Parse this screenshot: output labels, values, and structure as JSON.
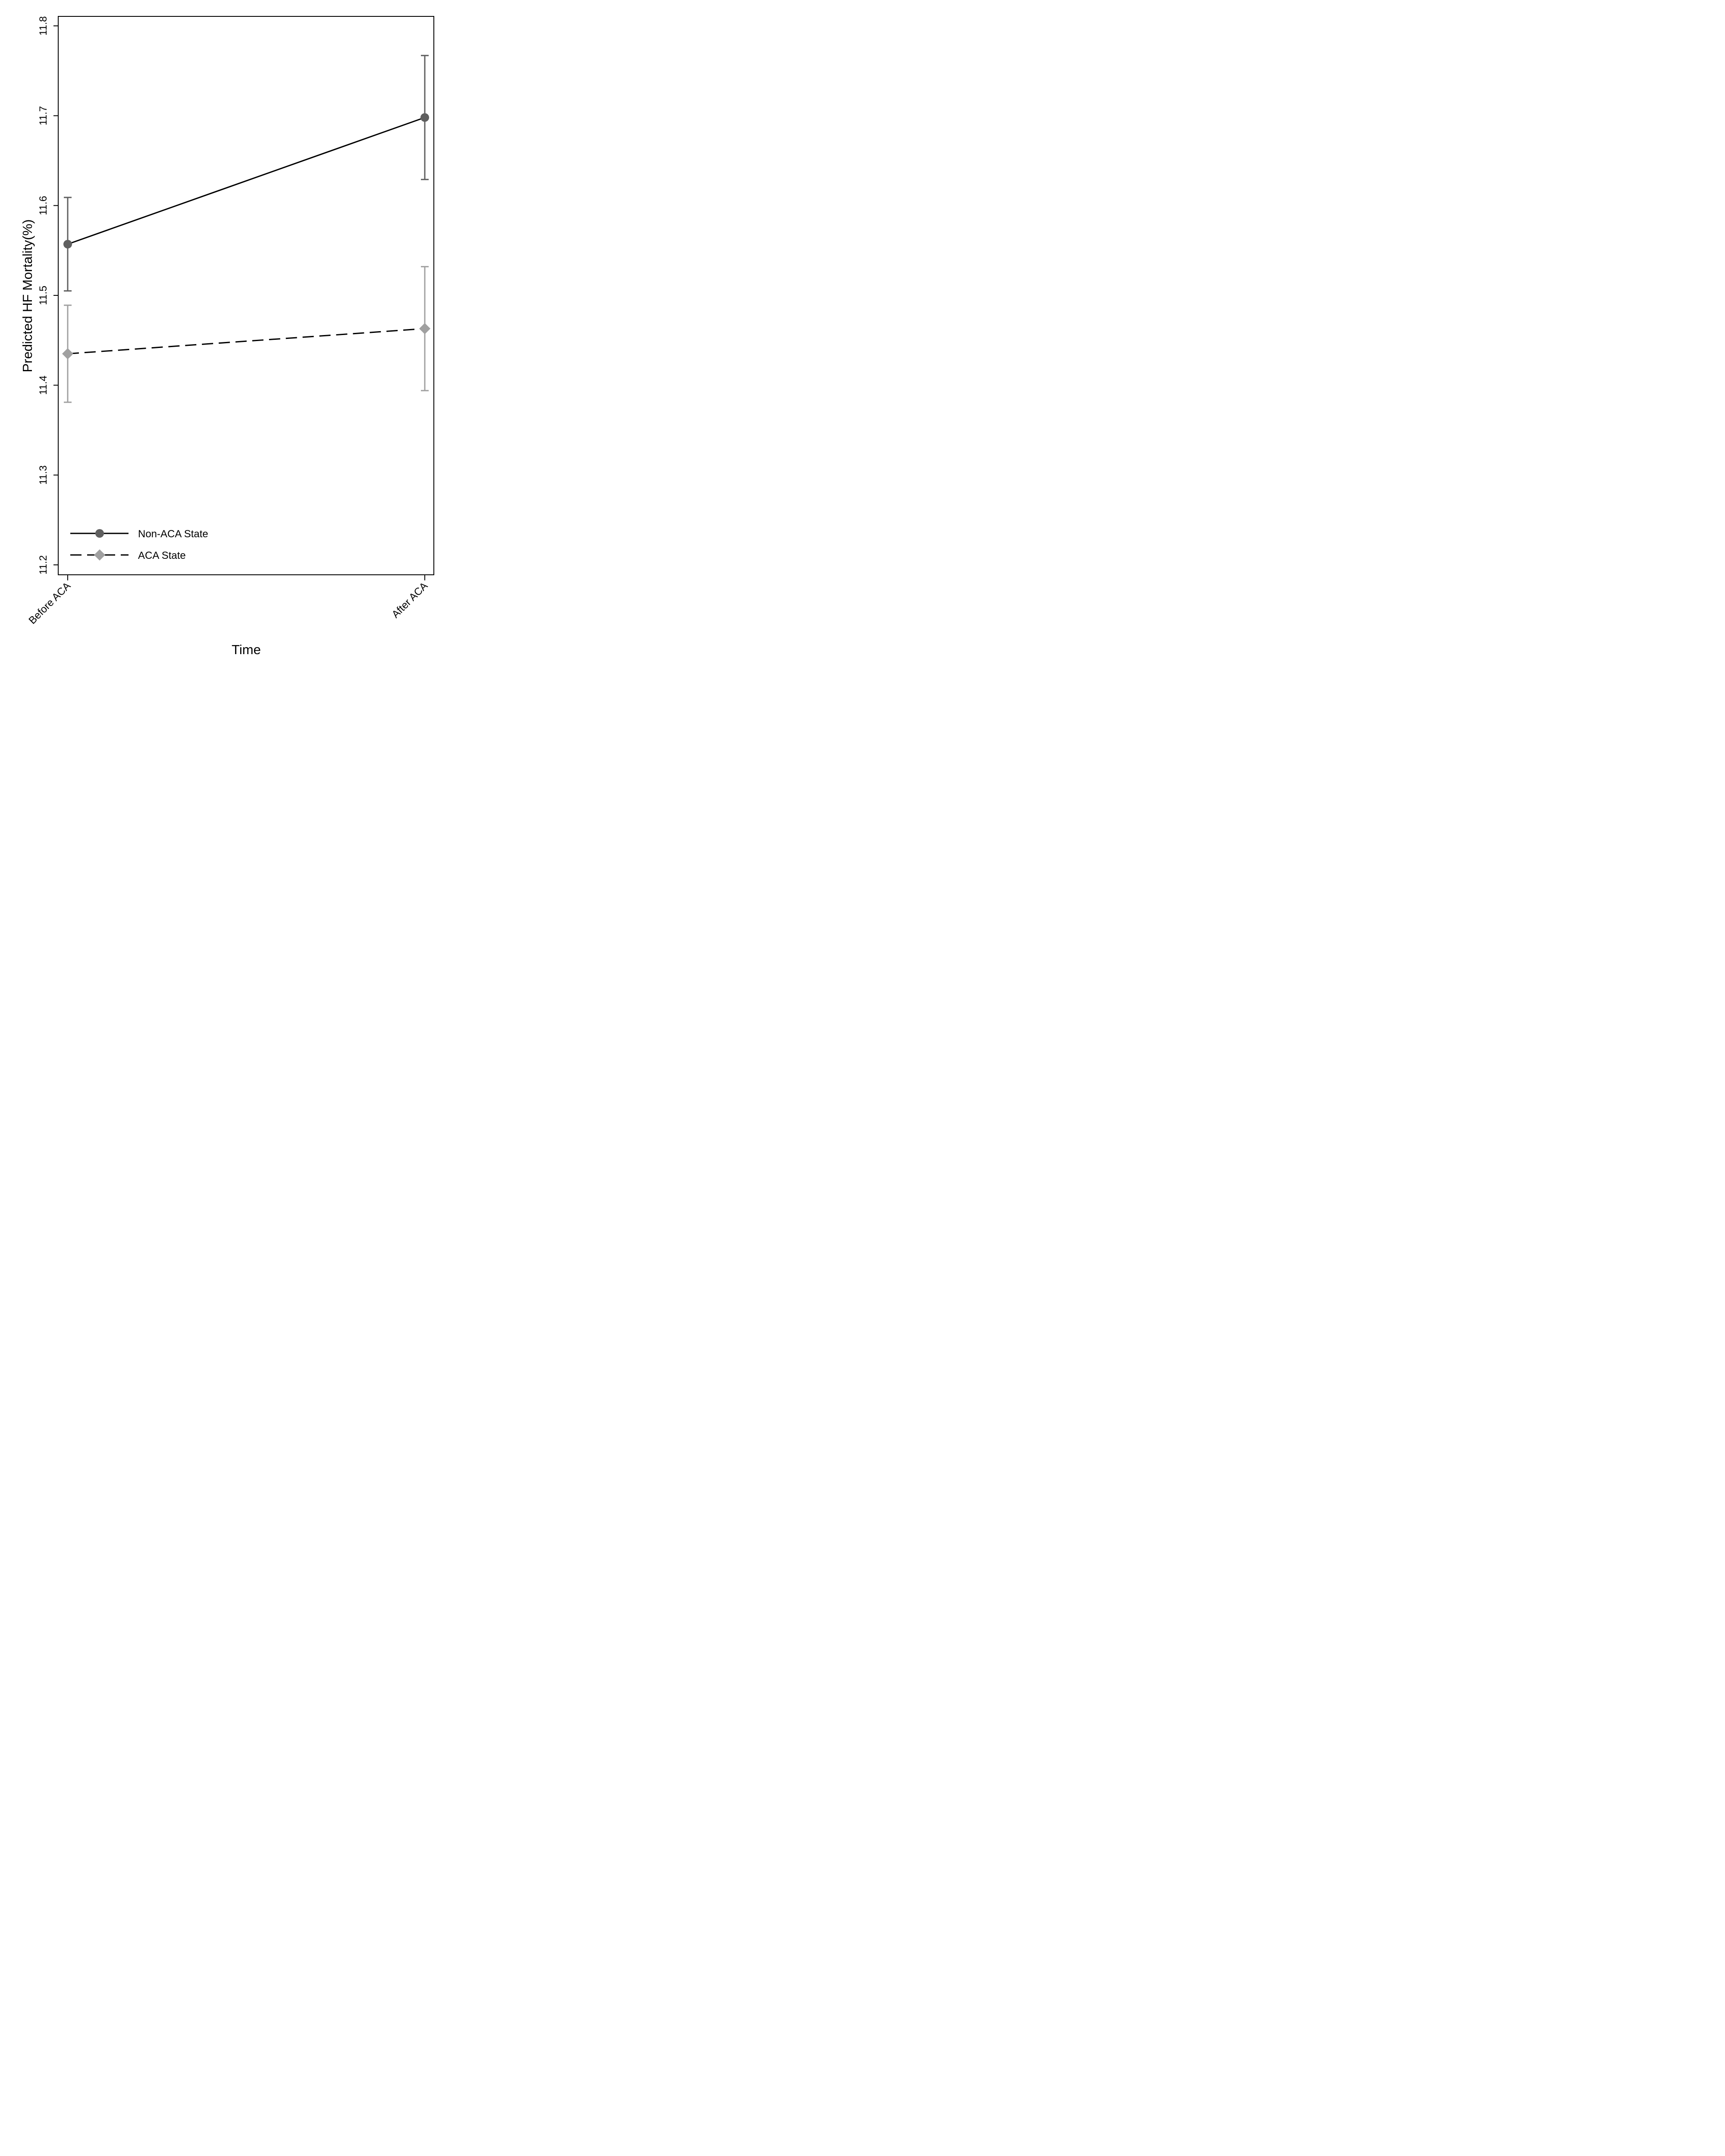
{
  "chart_data": {
    "type": "line",
    "title": "",
    "xlabel": "Time",
    "ylabel": "Predicted HF Mortality(%)",
    "categories": [
      "Before ACA",
      "After ACA"
    ],
    "ylim": [
      11.2,
      11.8
    ],
    "yticks": [
      "11.2",
      "11.3",
      "11.4",
      "11.5",
      "11.6",
      "11.7",
      "11.8"
    ],
    "grid": false,
    "legend_position": "bottom-left",
    "series": [
      {
        "name": "Non-ACA State",
        "values": [
          11.557,
          11.698
        ],
        "ci_low": [
          11.505,
          11.629
        ],
        "ci_high": [
          11.609,
          11.767
        ],
        "marker": "circle",
        "line_style": "solid",
        "line_color": "#000000",
        "marker_color": "#5f5f5f",
        "errorbar_color": "#5f5f5f"
      },
      {
        "name": "ACA State",
        "values": [
          11.435,
          11.463
        ],
        "ci_low": [
          11.381,
          11.394
        ],
        "ci_high": [
          11.489,
          11.532
        ],
        "marker": "diamond",
        "line_style": "dashed",
        "line_color": "#000000",
        "marker_color": "#a0a0a0",
        "errorbar_color": "#a0a0a0"
      }
    ]
  }
}
